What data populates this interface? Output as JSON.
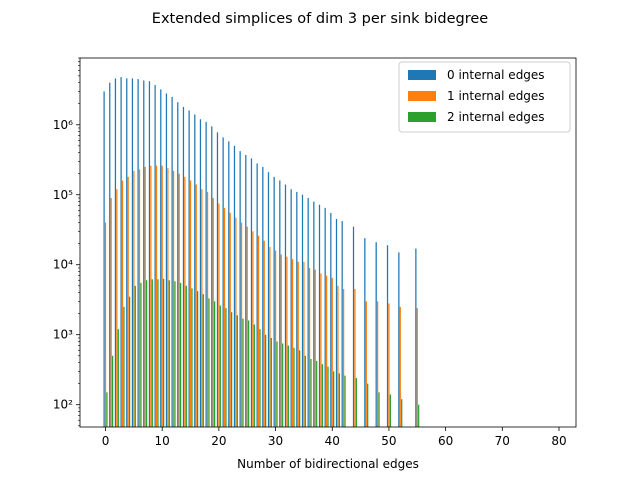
{
  "chart_data": {
    "type": "bar",
    "title": "Extended simplices of dim 3 per sink bidegree",
    "xlabel": "Number of bidirectional edges",
    "ylabel": "",
    "yscale": "log",
    "xlim": [
      -4.5,
      83
    ],
    "ylim": [
      48,
      9000000
    ],
    "xticks": [
      0,
      10,
      20,
      30,
      40,
      50,
      60,
      70,
      80
    ],
    "yticks": [
      {
        "value": 100,
        "label": "10²"
      },
      {
        "value": 1000,
        "label": "10³"
      },
      {
        "value": 10000,
        "label": "10⁴"
      },
      {
        "value": 100000,
        "label": "10⁵"
      },
      {
        "value": 1000000,
        "label": "10⁶"
      }
    ],
    "legend": {
      "position": "top-right"
    },
    "grid": false,
    "series": [
      {
        "name": "0 internal edges",
        "color": "#1f77b4",
        "x": [
          0,
          1,
          2,
          3,
          4,
          5,
          6,
          7,
          8,
          9,
          10,
          11,
          12,
          13,
          14,
          15,
          16,
          17,
          18,
          19,
          20,
          21,
          22,
          23,
          24,
          25,
          26,
          27,
          28,
          29,
          30,
          31,
          32,
          33,
          34,
          35,
          36,
          37,
          38,
          39,
          40,
          41,
          42,
          44,
          46,
          48,
          50,
          52,
          55
        ],
        "values": [
          3000000,
          4000000,
          4600000,
          4800000,
          4600000,
          4600000,
          4500000,
          4300000,
          4200000,
          3700000,
          3200000,
          2800000,
          2500000,
          2100000,
          1800000,
          1600000,
          1400000,
          1200000,
          1100000,
          950000,
          780000,
          660000,
          580000,
          500000,
          420000,
          370000,
          330000,
          280000,
          250000,
          210000,
          180000,
          160000,
          140000,
          120000,
          110000,
          100000,
          90000,
          80000,
          72000,
          65000,
          55000,
          45000,
          42000,
          35000,
          24000,
          21000,
          19000,
          15000,
          17000
        ]
      },
      {
        "name": "1 internal edges",
        "color": "#ff7f0e",
        "x": [
          0,
          1,
          2,
          3,
          4,
          5,
          6,
          7,
          8,
          9,
          10,
          11,
          12,
          13,
          14,
          15,
          16,
          17,
          18,
          19,
          20,
          21,
          22,
          23,
          24,
          25,
          26,
          27,
          28,
          29,
          30,
          31,
          32,
          33,
          34,
          35,
          36,
          37,
          38,
          39,
          40,
          41,
          42,
          44,
          46,
          48,
          50,
          52,
          55
        ],
        "values": [
          40000,
          90000,
          120000,
          160000,
          180000,
          220000,
          230000,
          250000,
          260000,
          260000,
          260000,
          240000,
          220000,
          200000,
          180000,
          160000,
          140000,
          120000,
          110000,
          90000,
          75000,
          65000,
          55000,
          47000,
          40000,
          35000,
          30000,
          26000,
          22000,
          18000,
          16000,
          14000,
          13000,
          12000,
          11000,
          11000,
          9000,
          8500,
          7500,
          7000,
          6500,
          5000,
          4500,
          4500,
          3000,
          3000,
          2800,
          2500,
          2400
        ]
      },
      {
        "name": "2 internal edges",
        "color": "#2ca02c",
        "x": [
          0,
          1,
          2,
          3,
          4,
          5,
          6,
          7,
          8,
          9,
          10,
          11,
          12,
          13,
          14,
          15,
          16,
          17,
          18,
          19,
          20,
          21,
          22,
          23,
          24,
          25,
          26,
          27,
          28,
          29,
          30,
          31,
          32,
          33,
          34,
          35,
          36,
          37,
          38,
          39,
          40,
          41,
          42,
          44,
          46,
          48,
          50,
          52,
          55
        ],
        "values": [
          150,
          500,
          1200,
          2500,
          3500,
          5000,
          5500,
          6000,
          6200,
          6200,
          6300,
          6000,
          5800,
          5500,
          5000,
          4600,
          4200,
          3800,
          3300,
          3000,
          2600,
          2400,
          2100,
          1900,
          1700,
          1600,
          1400,
          1200,
          1000,
          900,
          800,
          750,
          700,
          650,
          600,
          500,
          450,
          420,
          380,
          350,
          300,
          280,
          260,
          240,
          200,
          150,
          140,
          120,
          100
        ]
      }
    ]
  }
}
